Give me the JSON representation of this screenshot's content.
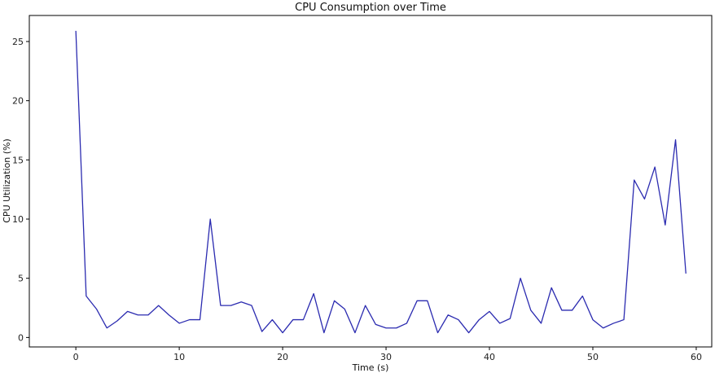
{
  "chart_data": {
    "type": "line",
    "title": "CPU Consumption over Time",
    "xlabel": "Time (s)",
    "ylabel": "CPU Utilization (%)",
    "xlim": [
      -4.5,
      61.5
    ],
    "ylim": [
      -0.8,
      27.2
    ],
    "xticks": [
      0,
      10,
      20,
      30,
      40,
      50,
      60
    ],
    "yticks": [
      0,
      5,
      10,
      15,
      20,
      25
    ],
    "grid": false,
    "series": [
      {
        "color": "#2b2bb0",
        "x": [
          0,
          1,
          2,
          3,
          4,
          5,
          6,
          7,
          8,
          9,
          10,
          11,
          12,
          13,
          14,
          15,
          16,
          17,
          18,
          19,
          20,
          21,
          22,
          23,
          24,
          25,
          26,
          27,
          28,
          29,
          30,
          31,
          32,
          33,
          34,
          35,
          36,
          37,
          38,
          39,
          40,
          41,
          42,
          43,
          44,
          45,
          46,
          47,
          48,
          49,
          50,
          51,
          52,
          53,
          54,
          55,
          56,
          57,
          58,
          59
        ],
        "values": [
          25.9,
          3.5,
          2.4,
          0.8,
          1.4,
          2.2,
          1.9,
          1.9,
          2.7,
          1.9,
          1.2,
          1.5,
          1.5,
          10.0,
          2.7,
          2.7,
          3.0,
          2.7,
          0.5,
          1.5,
          0.4,
          1.5,
          1.5,
          3.7,
          0.4,
          3.1,
          2.4,
          0.4,
          2.7,
          1.1,
          0.8,
          0.8,
          1.2,
          3.1,
          3.1,
          0.4,
          1.9,
          1.5,
          0.4,
          1.5,
          2.2,
          1.2,
          1.6,
          5.0,
          2.3,
          1.2,
          4.2,
          2.3,
          2.3,
          3.5,
          1.5,
          0.8,
          1.2,
          1.5,
          13.3,
          11.7,
          14.4,
          9.5,
          16.7,
          5.4
        ]
      }
    ]
  }
}
